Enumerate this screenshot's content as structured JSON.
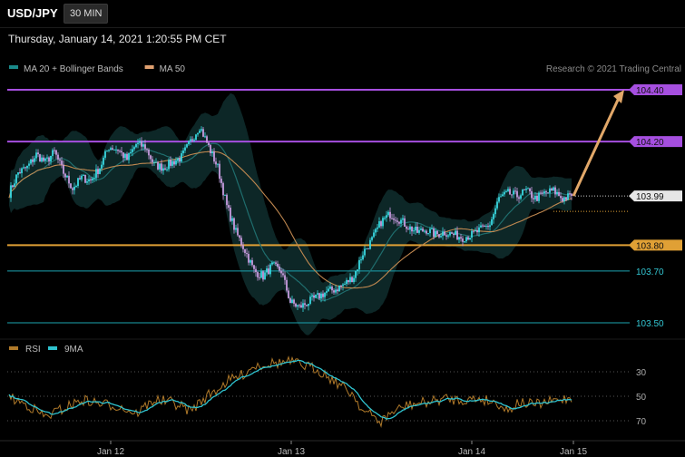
{
  "header": {
    "symbol": "USD/JPY",
    "timeframe": "30 MIN",
    "datetime": "Thursday, January 14, 2021 1:20:55 PM CET"
  },
  "credit": "Research © 2021 Trading Central",
  "colors": {
    "background": "#000000",
    "candle_up": "#39d8e0",
    "candle_down": "#c79bde",
    "resistance": "#a64fe0",
    "support_orange": "#e0a035",
    "support_teal": "#1ca3b0",
    "ma20": "#1f6d6d",
    "ma50": "#c08850",
    "bb_fill": "#0f2e2e",
    "rsi": "#b07a2a",
    "rsi_ma": "#2fc3cf",
    "target_arrow": "#e2a869"
  },
  "chart_data": [
    {
      "type": "candlestick",
      "legend": [
        {
          "label": "MA 20 + Bollinger Bands",
          "color": "#1a8a8a"
        },
        {
          "label": "MA 50",
          "color": "#e0a070"
        }
      ],
      "ylim": [
        103.47,
        104.47
      ],
      "x_ticks": [
        "Jan 12",
        "Jan 13",
        "Jan 14",
        "Jan 15"
      ],
      "current_price": {
        "value": 103.99,
        "label": "103.99"
      },
      "levels": [
        {
          "value": 104.4,
          "label": "104.40",
          "kind": "resistance"
        },
        {
          "value": 104.2,
          "label": "104.20",
          "kind": "resistance"
        },
        {
          "value": 103.8,
          "label": "103.80",
          "kind": "support"
        },
        {
          "value": 103.7,
          "label": "103.70",
          "kind": "support-minor"
        },
        {
          "value": 103.5,
          "label": "103.50",
          "kind": "support-minor"
        }
      ],
      "projection": {
        "from": 103.99,
        "to": 104.4
      },
      "anchors": [
        [
          0,
          104.0
        ],
        [
          5,
          104.08
        ],
        [
          10,
          104.1
        ],
        [
          15,
          104.15
        ],
        [
          20,
          104.12
        ],
        [
          25,
          104.16
        ],
        [
          30,
          104.08
        ],
        [
          35,
          104.02
        ],
        [
          40,
          104.06
        ],
        [
          45,
          104.05
        ],
        [
          50,
          104.1
        ],
        [
          55,
          104.18
        ],
        [
          60,
          104.17
        ],
        [
          65,
          104.13
        ],
        [
          70,
          104.19
        ],
        [
          75,
          104.18
        ],
        [
          80,
          104.11
        ],
        [
          85,
          104.1
        ],
        [
          90,
          104.12
        ],
        [
          95,
          104.14
        ],
        [
          100,
          104.2
        ],
        [
          105,
          104.26
        ],
        [
          110,
          104.18
        ],
        [
          115,
          104.1
        ],
        [
          120,
          103.95
        ],
        [
          125,
          103.85
        ],
        [
          130,
          103.78
        ],
        [
          135,
          103.7
        ],
        [
          140,
          103.68
        ],
        [
          145,
          103.72
        ],
        [
          150,
          103.7
        ],
        [
          155,
          103.58
        ],
        [
          160,
          103.56
        ],
        [
          165,
          103.58
        ],
        [
          170,
          103.6
        ],
        [
          175,
          103.62
        ],
        [
          180,
          103.63
        ],
        [
          185,
          103.65
        ],
        [
          190,
          103.68
        ],
        [
          195,
          103.77
        ],
        [
          200,
          103.82
        ],
        [
          205,
          103.89
        ],
        [
          210,
          103.92
        ],
        [
          215,
          103.9
        ],
        [
          220,
          103.87
        ],
        [
          225,
          103.85
        ],
        [
          230,
          103.86
        ],
        [
          235,
          103.84
        ],
        [
          240,
          103.85
        ],
        [
          245,
          103.84
        ],
        [
          250,
          103.83
        ],
        [
          255,
          103.84
        ],
        [
          260,
          103.86
        ],
        [
          265,
          103.88
        ],
        [
          270,
          103.98
        ],
        [
          275,
          104.0
        ],
        [
          280,
          103.99
        ],
        [
          285,
          104.01
        ],
        [
          290,
          103.98
        ],
        [
          295,
          104.0
        ],
        [
          300,
          104.01
        ],
        [
          305,
          103.98
        ],
        [
          310,
          103.99
        ]
      ]
    },
    {
      "type": "line",
      "series": [
        {
          "name": "RSI"
        },
        {
          "name": "9MA"
        }
      ],
      "ylim": [
        20,
        80
      ],
      "y_ticks": [
        70,
        50,
        30
      ],
      "anchors": [
        [
          0,
          51
        ],
        [
          10,
          57
        ],
        [
          20,
          67
        ],
        [
          30,
          60
        ],
        [
          40,
          53
        ],
        [
          50,
          56
        ],
        [
          60,
          58
        ],
        [
          70,
          64
        ],
        [
          80,
          53
        ],
        [
          90,
          55
        ],
        [
          100,
          62
        ],
        [
          108,
          51
        ],
        [
          115,
          44
        ],
        [
          120,
          38
        ],
        [
          128,
          33
        ],
        [
          135,
          25
        ],
        [
          145,
          23
        ],
        [
          155,
          22
        ],
        [
          160,
          24
        ],
        [
          170,
          28
        ],
        [
          180,
          38
        ],
        [
          190,
          49
        ],
        [
          195,
          62
        ],
        [
          200,
          66
        ],
        [
          205,
          71
        ],
        [
          210,
          64
        ],
        [
          220,
          57
        ],
        [
          230,
          55
        ],
        [
          240,
          52
        ],
        [
          250,
          53
        ],
        [
          260,
          52
        ],
        [
          270,
          56
        ],
        [
          275,
          62
        ],
        [
          280,
          55
        ],
        [
          290,
          57
        ],
        [
          300,
          54
        ],
        [
          310,
          51
        ]
      ]
    }
  ]
}
